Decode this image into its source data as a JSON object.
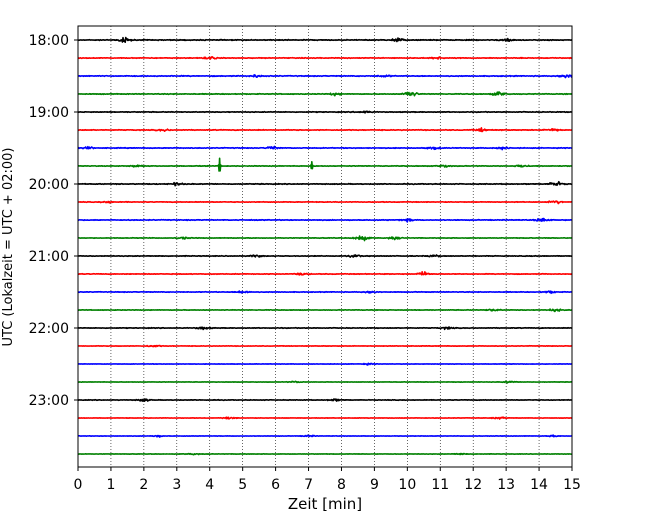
{
  "chart_data": {
    "type": "line",
    "title": "",
    "xlabel": "Zeit  [min]",
    "ylabel": "UTC (Lokalzeit = UTC + 02:00)",
    "xlim": [
      0,
      15
    ],
    "x_ticks": [
      "0",
      "1",
      "2",
      "3",
      "4",
      "5",
      "6",
      "7",
      "8",
      "9",
      "10",
      "11",
      "12",
      "13",
      "14",
      "15"
    ],
    "y_ticks": [
      "18:00",
      "19:00",
      "20:00",
      "21:00",
      "22:00",
      "23:00"
    ],
    "grid": "vertical dotted at each minute",
    "trace_colors": [
      "#000000",
      "#ff0000",
      "#0000ff",
      "#008000"
    ],
    "traces": [
      {
        "start": "18:00",
        "color": "#000000",
        "amplitude": 1.0,
        "bursts": [
          [
            1.4,
            1.0
          ],
          [
            9.7,
            0.7
          ],
          [
            13.0,
            0.6
          ]
        ]
      },
      {
        "start": "18:15",
        "color": "#ff0000",
        "amplitude": 0.9,
        "bursts": [
          [
            4.0,
            0.5
          ],
          [
            10.9,
            0.4
          ]
        ]
      },
      {
        "start": "18:30",
        "color": "#0000ff",
        "amplitude": 1.0,
        "bursts": [
          [
            14.8,
            0.9
          ],
          [
            5.4,
            0.5
          ],
          [
            9.3,
            0.4
          ]
        ]
      },
      {
        "start": "18:45",
        "color": "#008000",
        "amplitude": 0.9,
        "bursts": [
          [
            10.1,
            1.3
          ],
          [
            12.8,
            1.0
          ],
          [
            7.8,
            0.5
          ]
        ]
      },
      {
        "start": "19:00",
        "color": "#000000",
        "amplitude": 0.9,
        "bursts": [
          [
            8.7,
            0.4
          ]
        ]
      },
      {
        "start": "19:15",
        "color": "#ff0000",
        "amplitude": 0.9,
        "bursts": [
          [
            12.3,
            0.8
          ],
          [
            14.4,
            0.6
          ],
          [
            2.6,
            0.4
          ]
        ]
      },
      {
        "start": "19:30",
        "color": "#0000ff",
        "amplitude": 0.9,
        "bursts": [
          [
            5.9,
            0.6
          ],
          [
            10.8,
            0.5
          ],
          [
            12.9,
            0.5
          ],
          [
            0.3,
            0.4
          ]
        ]
      },
      {
        "start": "19:45",
        "color": "#008000",
        "amplitude": 0.8,
        "bursts": [
          [
            1.8,
            0.5
          ],
          [
            11.1,
            0.5
          ],
          [
            13.5,
            0.5
          ]
        ],
        "spikes": [
          [
            4.3,
            1.9
          ],
          [
            7.1,
            1.0
          ]
        ]
      },
      {
        "start": "20:00",
        "color": "#000000",
        "amplitude": 0.9,
        "bursts": [
          [
            14.5,
            0.9
          ],
          [
            3.0,
            0.5
          ]
        ]
      },
      {
        "start": "20:15",
        "color": "#ff0000",
        "amplitude": 0.8,
        "bursts": [
          [
            14.5,
            0.6
          ],
          [
            0.9,
            0.4
          ]
        ]
      },
      {
        "start": "20:30",
        "color": "#0000ff",
        "amplitude": 0.9,
        "bursts": [
          [
            14.1,
            0.8
          ],
          [
            10.0,
            0.5
          ]
        ]
      },
      {
        "start": "20:45",
        "color": "#008000",
        "amplitude": 0.7,
        "bursts": [
          [
            8.6,
            1.3
          ],
          [
            3.2,
            0.4
          ],
          [
            9.6,
            0.5
          ]
        ]
      },
      {
        "start": "21:00",
        "color": "#000000",
        "amplitude": 0.8,
        "bursts": [
          [
            10.8,
            0.5
          ],
          [
            8.4,
            0.5
          ],
          [
            5.4,
            0.4
          ]
        ]
      },
      {
        "start": "21:15",
        "color": "#ff0000",
        "amplitude": 0.8,
        "bursts": [
          [
            10.5,
            0.8
          ],
          [
            6.8,
            0.4
          ]
        ]
      },
      {
        "start": "21:30",
        "color": "#0000ff",
        "amplitude": 0.8,
        "bursts": [
          [
            5.0,
            0.6
          ],
          [
            8.9,
            0.5
          ],
          [
            14.3,
            0.5
          ]
        ]
      },
      {
        "start": "21:45",
        "color": "#008000",
        "amplitude": 0.7,
        "bursts": [
          [
            14.5,
            0.6
          ],
          [
            12.6,
            0.5
          ]
        ]
      },
      {
        "start": "22:00",
        "color": "#000000",
        "amplitude": 0.8,
        "bursts": [
          [
            3.8,
            0.6
          ],
          [
            11.2,
            0.4
          ]
        ]
      },
      {
        "start": "22:15",
        "color": "#ff0000",
        "amplitude": 0.6,
        "bursts": [
          [
            2.3,
            0.4
          ]
        ]
      },
      {
        "start": "22:30",
        "color": "#0000ff",
        "amplitude": 0.5,
        "bursts": [
          [
            8.8,
            0.3
          ]
        ]
      },
      {
        "start": "22:45",
        "color": "#008000",
        "amplitude": 0.5,
        "bursts": [
          [
            13.1,
            0.4
          ],
          [
            6.6,
            0.3
          ]
        ]
      },
      {
        "start": "23:00",
        "color": "#000000",
        "amplitude": 0.7,
        "bursts": [
          [
            2.0,
            0.5
          ],
          [
            7.8,
            0.4
          ]
        ]
      },
      {
        "start": "23:15",
        "color": "#ff0000",
        "amplitude": 0.5,
        "bursts": [
          [
            4.6,
            0.4
          ],
          [
            12.8,
            0.4
          ]
        ]
      },
      {
        "start": "23:30",
        "color": "#0000ff",
        "amplitude": 0.5,
        "bursts": [
          [
            2.4,
            0.4
          ],
          [
            7.0,
            0.3
          ],
          [
            14.4,
            0.3
          ]
        ]
      },
      {
        "start": "23:45",
        "color": "#008000",
        "amplitude": 0.5,
        "bursts": [
          [
            11.6,
            0.3
          ],
          [
            3.5,
            0.3
          ]
        ]
      }
    ]
  }
}
